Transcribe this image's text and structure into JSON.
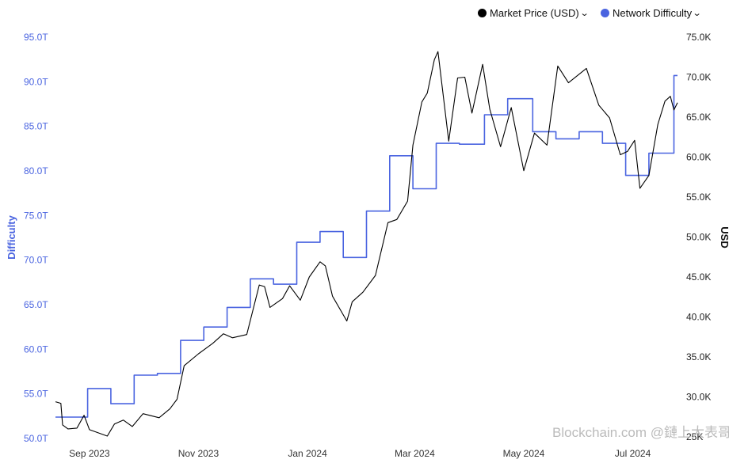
{
  "legend": {
    "price_label": "Market Price (USD)",
    "difficulty_label": "Network Difficulty"
  },
  "watermark": "Blockchain.com @鏈上大表哥",
  "colors": {
    "price": "#000000",
    "difficulty": "#4a64e0"
  },
  "chart_data": {
    "type": "line",
    "y_left": {
      "label": "Difficulty",
      "range": [
        50,
        95
      ],
      "ticks": [
        "50.0T",
        "55.0T",
        "60.0T",
        "65.0T",
        "70.0T",
        "75.0T",
        "80.0T",
        "85.0T",
        "90.0T",
        "95.0T"
      ],
      "ticks_values": [
        50,
        55,
        60,
        65,
        70,
        75,
        80,
        85,
        90,
        95
      ]
    },
    "y_right": {
      "label": "USD",
      "range": [
        25,
        75
      ],
      "ticks": [
        "25K",
        "30.0K",
        "35.0K",
        "40.0K",
        "45.0K",
        "50.0K",
        "55.0K",
        "60.0K",
        "65.0K",
        "70.0K",
        "75.0K"
      ],
      "ticks_values": [
        25,
        30,
        35,
        40,
        45,
        50,
        55,
        60,
        65,
        70,
        75
      ]
    },
    "x_axis": {
      "range": [
        "2023-08-13",
        "2024-07-26"
      ],
      "ticks": [
        {
          "date": "2023-09-01",
          "label": "Sep 2023"
        },
        {
          "date": "2023-11-01",
          "label": "Nov 2023"
        },
        {
          "date": "2024-01-01",
          "label": "Jan 2024"
        },
        {
          "date": "2024-03-01",
          "label": "Mar 2024"
        },
        {
          "date": "2024-05-01",
          "label": "May 2024"
        },
        {
          "date": "2024-07-01",
          "label": "Jul 2024"
        }
      ]
    },
    "series": [
      {
        "name": "Network Difficulty",
        "axis": "left",
        "step": true,
        "points": [
          [
            "2023-08-13",
            52.4
          ],
          [
            "2023-08-31",
            55.6
          ],
          [
            "2023-09-13",
            53.9
          ],
          [
            "2023-09-26",
            57.1
          ],
          [
            "2023-10-09",
            57.3
          ],
          [
            "2023-10-22",
            61.0
          ],
          [
            "2023-11-04",
            62.5
          ],
          [
            "2023-11-17",
            64.7
          ],
          [
            "2023-11-30",
            67.9
          ],
          [
            "2023-12-13",
            67.3
          ],
          [
            "2023-12-26",
            72.0
          ],
          [
            "2024-01-08",
            73.2
          ],
          [
            "2024-01-21",
            70.3
          ],
          [
            "2024-02-03",
            75.5
          ],
          [
            "2024-02-16",
            81.7
          ],
          [
            "2024-02-29",
            78.0
          ],
          [
            "2024-03-13",
            83.1
          ],
          [
            "2024-03-26",
            83.0
          ],
          [
            "2024-04-09",
            86.3
          ],
          [
            "2024-04-22",
            88.1
          ],
          [
            "2024-05-06",
            84.4
          ],
          [
            "2024-05-19",
            83.6
          ],
          [
            "2024-06-01",
            84.4
          ],
          [
            "2024-06-14",
            83.1
          ],
          [
            "2024-06-27",
            79.5
          ],
          [
            "2024-07-06",
            79.5
          ],
          [
            "2024-07-10",
            82.0
          ],
          [
            "2024-07-22",
            82.0
          ],
          [
            "2024-07-24",
            90.7
          ]
        ]
      },
      {
        "name": "Market Price (USD)",
        "axis": "right",
        "points": [
          [
            "2023-08-13",
            29.4
          ],
          [
            "2023-08-16",
            29.2
          ],
          [
            "2023-08-17",
            26.5
          ],
          [
            "2023-08-20",
            26.0
          ],
          [
            "2023-08-25",
            26.1
          ],
          [
            "2023-08-29",
            27.7
          ],
          [
            "2023-09-01",
            25.9
          ],
          [
            "2023-09-11",
            25.1
          ],
          [
            "2023-09-15",
            26.6
          ],
          [
            "2023-09-20",
            27.1
          ],
          [
            "2023-09-25",
            26.3
          ],
          [
            "2023-10-01",
            27.9
          ],
          [
            "2023-10-10",
            27.4
          ],
          [
            "2023-10-16",
            28.5
          ],
          [
            "2023-10-20",
            29.7
          ],
          [
            "2023-10-24",
            33.9
          ],
          [
            "2023-11-01",
            35.4
          ],
          [
            "2023-11-09",
            36.7
          ],
          [
            "2023-11-15",
            37.9
          ],
          [
            "2023-11-20",
            37.4
          ],
          [
            "2023-11-28",
            37.8
          ],
          [
            "2023-12-05",
            44.0
          ],
          [
            "2023-12-08",
            43.8
          ],
          [
            "2023-12-11",
            41.2
          ],
          [
            "2023-12-18",
            42.3
          ],
          [
            "2023-12-22",
            43.9
          ],
          [
            "2023-12-28",
            42.1
          ],
          [
            "2024-01-02",
            45.0
          ],
          [
            "2024-01-08",
            46.9
          ],
          [
            "2024-01-11",
            46.4
          ],
          [
            "2024-01-15",
            42.6
          ],
          [
            "2024-01-23",
            39.5
          ],
          [
            "2024-01-26",
            41.9
          ],
          [
            "2024-02-01",
            43.1
          ],
          [
            "2024-02-08",
            45.2
          ],
          [
            "2024-02-15",
            51.8
          ],
          [
            "2024-02-20",
            52.2
          ],
          [
            "2024-02-26",
            54.5
          ],
          [
            "2024-02-29",
            61.5
          ],
          [
            "2024-03-05",
            66.9
          ],
          [
            "2024-03-08",
            68.0
          ],
          [
            "2024-03-12",
            72.2
          ],
          [
            "2024-03-14",
            73.2
          ],
          [
            "2024-03-20",
            62.0
          ],
          [
            "2024-03-25",
            69.9
          ],
          [
            "2024-03-29",
            70.0
          ],
          [
            "2024-04-02",
            65.5
          ],
          [
            "2024-04-08",
            71.6
          ],
          [
            "2024-04-12",
            66.0
          ],
          [
            "2024-04-18",
            61.3
          ],
          [
            "2024-04-24",
            66.2
          ],
          [
            "2024-05-01",
            58.3
          ],
          [
            "2024-05-07",
            63.0
          ],
          [
            "2024-05-14",
            61.5
          ],
          [
            "2024-05-20",
            71.4
          ],
          [
            "2024-05-26",
            69.3
          ],
          [
            "2024-06-05",
            71.1
          ],
          [
            "2024-06-12",
            66.5
          ],
          [
            "2024-06-18",
            64.9
          ],
          [
            "2024-06-24",
            60.3
          ],
          [
            "2024-06-28",
            60.7
          ],
          [
            "2024-07-02",
            62.1
          ],
          [
            "2024-07-05",
            56.1
          ],
          [
            "2024-07-10",
            57.7
          ],
          [
            "2024-07-15",
            64.1
          ],
          [
            "2024-07-19",
            67.0
          ],
          [
            "2024-07-22",
            67.6
          ],
          [
            "2024-07-24",
            65.9
          ],
          [
            "2024-07-26",
            66.8
          ]
        ]
      }
    ]
  }
}
